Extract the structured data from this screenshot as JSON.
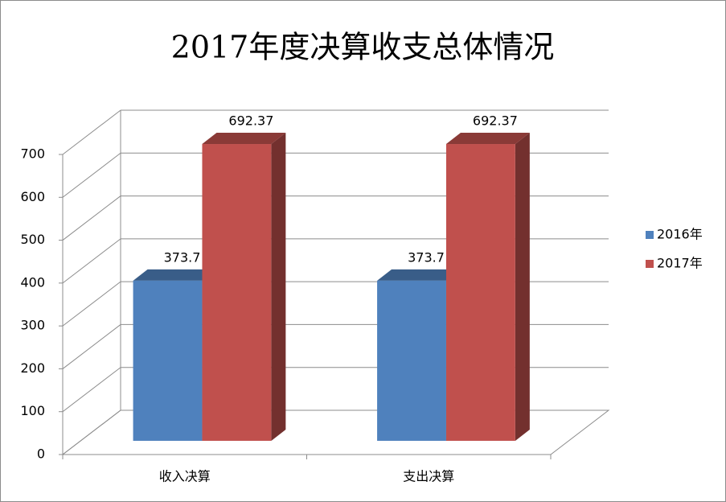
{
  "chart_data": {
    "type": "bar3d",
    "title": "2017年度决算收支总体情况",
    "categories": [
      "收入决算",
      "支出决算"
    ],
    "series": [
      {
        "name": "2016年",
        "color": "#4f81bd",
        "values": [
          373.7,
          373.7
        ]
      },
      {
        "name": "2017年",
        "color": "#c0504d",
        "values": [
          692.37,
          692.37
        ]
      }
    ],
    "ylim": [
      0,
      700
    ],
    "yticks": [
      0,
      100,
      200,
      300,
      400,
      500,
      600,
      700
    ],
    "grid": true,
    "legend": "right"
  }
}
